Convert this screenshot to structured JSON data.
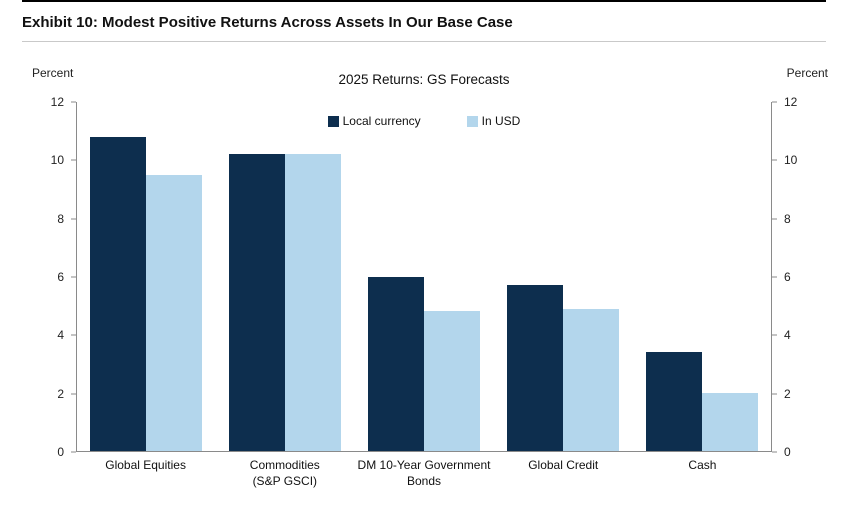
{
  "exhibit": {
    "title": "Exhibit 10: Modest Positive Returns Across Assets In Our Base Case"
  },
  "chart_data": {
    "type": "bar",
    "title": "2025 Returns: GS Forecasts",
    "ylabel_left": "Percent",
    "ylabel_right": "Percent",
    "ylim": [
      0,
      12
    ],
    "ytick_step": 2,
    "grid": false,
    "legend_position": "top-center",
    "categories": [
      "Global Equities",
      "Commodities\n(S&P GSCI)",
      "DM 10-Year Government\nBonds",
      "Global Credit",
      "Cash"
    ],
    "series": [
      {
        "name": "Local currency",
        "color": "#0d2e4e",
        "values": [
          10.8,
          10.2,
          6.0,
          5.7,
          3.4
        ]
      },
      {
        "name": "In USD",
        "color": "#b3d6ec",
        "values": [
          9.5,
          10.2,
          4.8,
          4.9,
          2.0
        ]
      }
    ]
  }
}
